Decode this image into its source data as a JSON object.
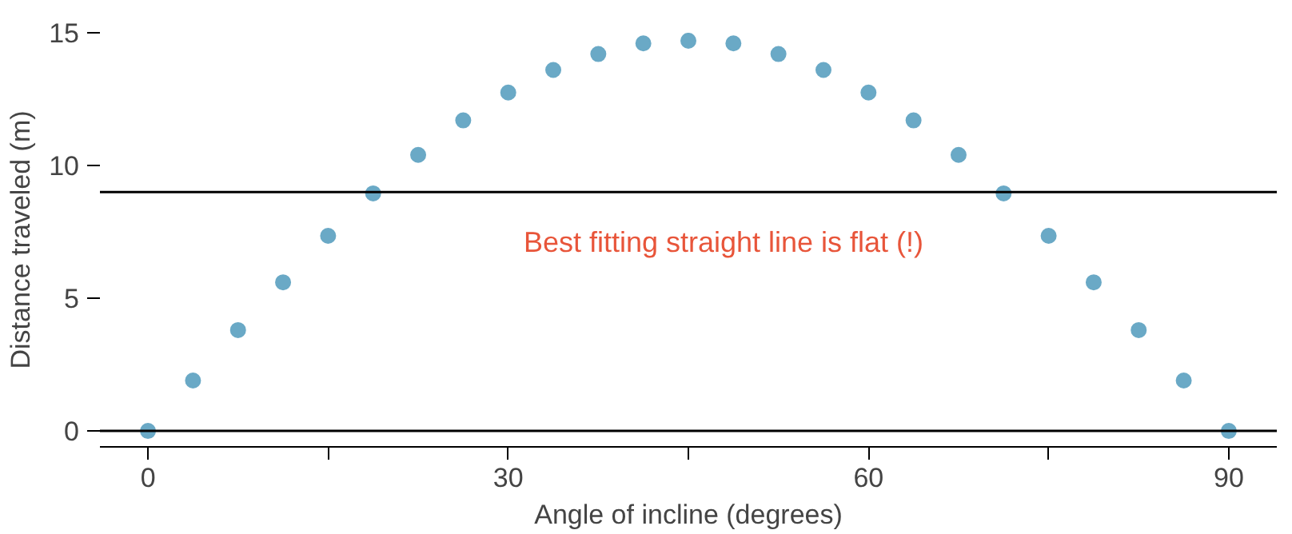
{
  "chart_data": {
    "type": "scatter",
    "xlabel": "Angle of incline (degrees)",
    "ylabel": "Distance traveled (m)",
    "x": [
      0,
      3.75,
      7.5,
      11.25,
      15,
      18.75,
      22.5,
      26.25,
      30,
      33.75,
      37.5,
      41.25,
      45,
      48.75,
      52.5,
      56.25,
      60,
      63.75,
      67.5,
      71.25,
      75,
      78.75,
      82.5,
      86.25,
      90
    ],
    "series": [
      {
        "color": "#6aa9c6",
        "values": [
          0,
          1.9,
          3.8,
          5.6,
          7.35,
          8.95,
          10.4,
          11.7,
          12.75,
          13.6,
          14.2,
          14.6,
          14.7,
          14.6,
          14.2,
          13.6,
          12.75,
          11.7,
          10.4,
          8.95,
          7.35,
          5.6,
          3.8,
          1.9,
          0
        ]
      }
    ],
    "xlim": [
      -4,
      94
    ],
    "ylim": [
      -0.6,
      15
    ],
    "xticks": [
      0,
      {
        "value": 15,
        "label": null
      },
      30,
      {
        "value": 45,
        "label": null
      },
      60,
      {
        "value": 75,
        "label": null
      },
      90
    ],
    "yticks": [
      0,
      5,
      10,
      15
    ],
    "ref_lines": [
      {
        "axis": "y",
        "value": 9,
        "color": "#000000"
      },
      {
        "axis": "y",
        "value": 0,
        "color": "#000000"
      }
    ],
    "annotations": [
      "Best fitting straight line is flat (!)"
    ],
    "grid": false,
    "marker": "circle"
  }
}
